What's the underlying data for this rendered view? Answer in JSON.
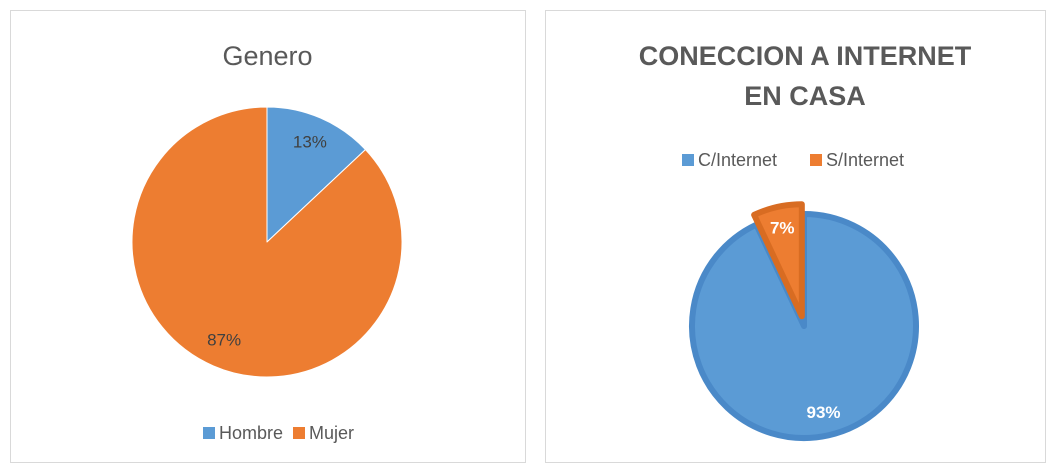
{
  "chart_data": [
    {
      "type": "pie",
      "title": "Genero",
      "categories": [
        "Hombre",
        "Mujer"
      ],
      "values": [
        13,
        87
      ],
      "value_labels": [
        "13%",
        "87%"
      ],
      "colors": [
        "#5b9bd5",
        "#ed7d31"
      ],
      "legend": "bottom"
    },
    {
      "type": "pie",
      "title": "CONECCION A INTERNET EN CASA",
      "categories": [
        "C/Internet",
        "S/Internet"
      ],
      "values": [
        93,
        7
      ],
      "value_labels": [
        "93%",
        "7%"
      ],
      "colors": [
        "#5b9bd5",
        "#ed7d31"
      ],
      "legend": "top"
    }
  ]
}
